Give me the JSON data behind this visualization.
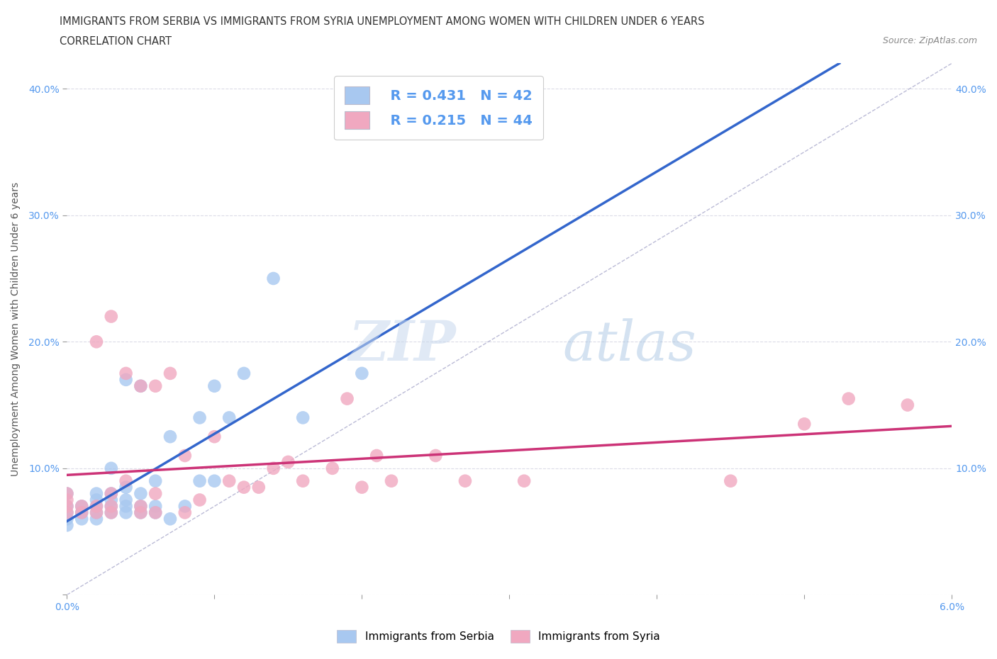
{
  "title_line1": "IMMIGRANTS FROM SERBIA VS IMMIGRANTS FROM SYRIA UNEMPLOYMENT AMONG WOMEN WITH CHILDREN UNDER 6 YEARS",
  "title_line2": "CORRELATION CHART",
  "source": "Source: ZipAtlas.com",
  "ylabel": "Unemployment Among Women with Children Under 6 years",
  "xlim": [
    0.0,
    0.06
  ],
  "ylim": [
    0.0,
    0.42
  ],
  "xticks": [
    0.0,
    0.01,
    0.02,
    0.03,
    0.04,
    0.05,
    0.06
  ],
  "xticklabels": [
    "0.0%",
    "",
    "",
    "",
    "",
    "",
    "6.0%"
  ],
  "yticks": [
    0.0,
    0.1,
    0.2,
    0.3,
    0.4
  ],
  "yticklabels": [
    "",
    "10.0%",
    "20.0%",
    "30.0%",
    "40.0%"
  ],
  "serbia_color": "#a8c8f0",
  "syria_color": "#f0a8c0",
  "serbia_line_color": "#3366cc",
  "syria_line_color": "#cc3377",
  "diagonal_color": "#aaaacc",
  "watermark_zip": "ZIP",
  "watermark_atlas": "atlas",
  "legend_R_serbia": "R = 0.431",
  "legend_N_serbia": "N = 42",
  "legend_R_syria": "R = 0.215",
  "legend_N_syria": "N = 44",
  "serbia_x": [
    0.0,
    0.0,
    0.0,
    0.0,
    0.0,
    0.001,
    0.001,
    0.001,
    0.002,
    0.002,
    0.002,
    0.002,
    0.002,
    0.003,
    0.003,
    0.003,
    0.003,
    0.003,
    0.004,
    0.004,
    0.004,
    0.004,
    0.004,
    0.005,
    0.005,
    0.005,
    0.005,
    0.006,
    0.006,
    0.006,
    0.007,
    0.007,
    0.008,
    0.009,
    0.009,
    0.01,
    0.01,
    0.011,
    0.012,
    0.014,
    0.016,
    0.02
  ],
  "serbia_y": [
    0.055,
    0.06,
    0.065,
    0.07,
    0.08,
    0.06,
    0.065,
    0.07,
    0.06,
    0.065,
    0.07,
    0.075,
    0.08,
    0.065,
    0.07,
    0.075,
    0.08,
    0.1,
    0.065,
    0.07,
    0.075,
    0.085,
    0.17,
    0.065,
    0.07,
    0.08,
    0.165,
    0.065,
    0.07,
    0.09,
    0.06,
    0.125,
    0.07,
    0.09,
    0.14,
    0.09,
    0.165,
    0.14,
    0.175,
    0.25,
    0.14,
    0.175
  ],
  "syria_x": [
    0.0,
    0.0,
    0.0,
    0.0,
    0.001,
    0.001,
    0.002,
    0.002,
    0.002,
    0.003,
    0.003,
    0.003,
    0.003,
    0.004,
    0.004,
    0.005,
    0.005,
    0.005,
    0.006,
    0.006,
    0.006,
    0.007,
    0.008,
    0.008,
    0.009,
    0.01,
    0.011,
    0.012,
    0.013,
    0.014,
    0.015,
    0.016,
    0.018,
    0.019,
    0.02,
    0.021,
    0.022,
    0.025,
    0.027,
    0.031,
    0.045,
    0.05,
    0.053,
    0.057
  ],
  "syria_y": [
    0.065,
    0.07,
    0.075,
    0.08,
    0.065,
    0.07,
    0.065,
    0.07,
    0.2,
    0.065,
    0.07,
    0.08,
    0.22,
    0.09,
    0.175,
    0.065,
    0.07,
    0.165,
    0.065,
    0.08,
    0.165,
    0.175,
    0.065,
    0.11,
    0.075,
    0.125,
    0.09,
    0.085,
    0.085,
    0.1,
    0.105,
    0.09,
    0.1,
    0.155,
    0.085,
    0.11,
    0.09,
    0.11,
    0.09,
    0.09,
    0.09,
    0.135,
    0.155,
    0.15
  ],
  "background_color": "#ffffff",
  "grid_color": "#ccccdd",
  "title_fontsize": 11,
  "label_fontsize": 10,
  "tick_color": "#5599ee"
}
